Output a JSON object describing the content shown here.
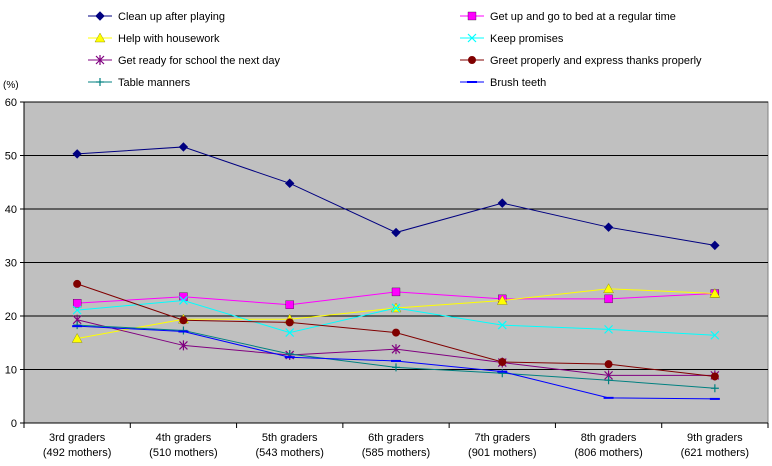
{
  "chart_data": {
    "type": "line",
    "y_unit": "(%)",
    "ylim": [
      0,
      60
    ],
    "y_ticks": [
      0,
      10,
      20,
      30,
      40,
      50,
      60
    ],
    "grid": true,
    "legend_position": "top",
    "plot_background": "#c0c0c0",
    "categories": [
      [
        "3rd graders",
        "(492 mothers)"
      ],
      [
        "4th graders",
        "(510 mothers)"
      ],
      [
        "5th graders",
        "(543 mothers)"
      ],
      [
        "6th graders",
        "(585 mothers)"
      ],
      [
        "7th graders",
        "(901 mothers)"
      ],
      [
        "8th graders",
        "(806 mothers)"
      ],
      [
        "9th graders",
        "(621 mothers)"
      ]
    ],
    "series": [
      {
        "name": "Clean up after playing",
        "color": "#000080",
        "marker": "diamond",
        "values": [
          50.3,
          51.6,
          44.8,
          35.6,
          41.1,
          36.6,
          33.2
        ]
      },
      {
        "name": "Get up and go to bed at a regular time",
        "color": "#ff00ff",
        "marker": "square",
        "values": [
          22.4,
          23.6,
          22.1,
          24.5,
          23.2,
          23.2,
          24.2
        ]
      },
      {
        "name": "Help with housework",
        "color": "#ffff00",
        "marker": "triangle",
        "values": [
          15.8,
          19.4,
          19.4,
          21.5,
          22.9,
          25.1,
          24.2
        ]
      },
      {
        "name": "Keep promises",
        "color": "#00ffff",
        "marker": "x",
        "values": [
          21.1,
          22.9,
          16.9,
          21.5,
          18.3,
          17.5,
          16.4
        ]
      },
      {
        "name": "Get ready for school the next day",
        "color": "#800080",
        "marker": "asterisk",
        "values": [
          19.3,
          14.5,
          12.7,
          13.8,
          11.3,
          8.9,
          8.9
        ]
      },
      {
        "name": "Greet properly and express thanks properly",
        "color": "#800000",
        "marker": "circle",
        "values": [
          26.0,
          19.2,
          18.8,
          16.9,
          11.4,
          11.0,
          8.7
        ]
      },
      {
        "name": "Table manners",
        "color": "#008080",
        "marker": "plus",
        "values": [
          18.3,
          17.3,
          12.9,
          10.4,
          9.3,
          8.0,
          6.5
        ]
      },
      {
        "name": "Brush teeth",
        "color": "#0000ff",
        "marker": "dash",
        "values": [
          18.1,
          17.1,
          12.3,
          11.6,
          9.6,
          4.7,
          4.5
        ]
      }
    ]
  }
}
